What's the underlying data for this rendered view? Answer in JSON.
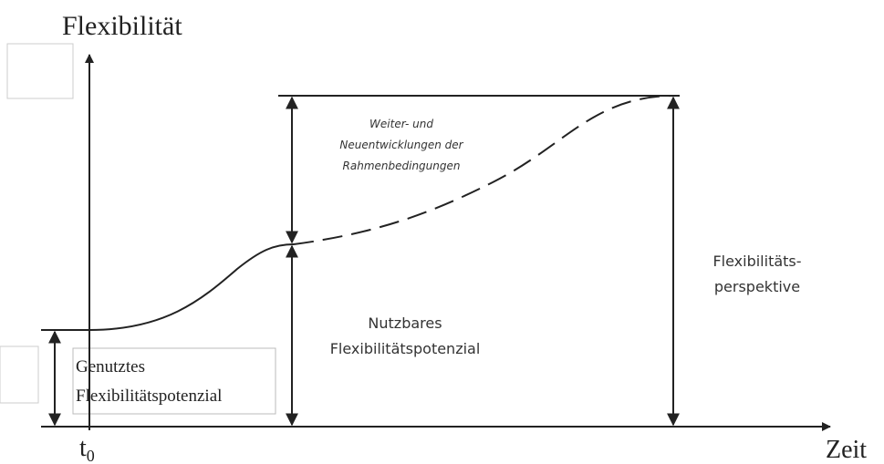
{
  "diagram": {
    "y_axis_label": "Flexibilität",
    "x_axis_label": "Zeit",
    "origin_label": {
      "base": "t",
      "subscript": "0"
    },
    "annotations": {
      "development": [
        "Weiter- und",
        "Neuentwicklungen der",
        "Rahmenbedingungen"
      ],
      "usable": [
        "Nutzbares",
        "Flexibilitätspotenzial"
      ],
      "perspective": [
        "Flexibilitäts-",
        "perspektive"
      ],
      "used": [
        "Genutztes",
        "Flexibilitätspotenzial"
      ]
    }
  }
}
